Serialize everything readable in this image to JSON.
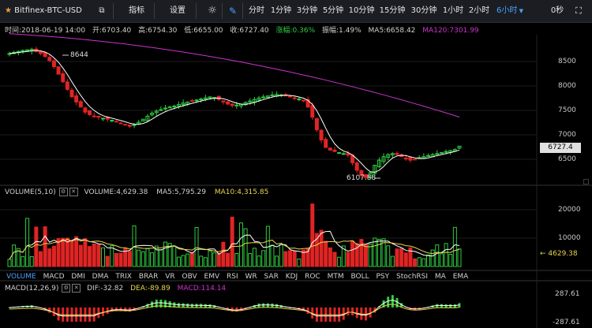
{
  "toolbar": {
    "symbol": "Bitfinex-BTC-USD",
    "indicators_label": "指标",
    "settings_label": "设置",
    "timeframes": [
      "分时",
      "1分钟",
      "3分钟",
      "5分钟",
      "10分钟",
      "15分钟",
      "30分钟",
      "1小时",
      "2小时",
      "6小时"
    ],
    "active_timeframe": "6小时",
    "countdown": "0秒"
  },
  "info_bar": {
    "time": "时间:2018-06-19 14:00",
    "open": "开:6703.40",
    "high": "高:6754.30",
    "low": "低:6655.00",
    "close": "收:6727.40",
    "change": "涨幅:0.36%",
    "amplitude": "振幅:1.49%",
    "ma5": "MA5:6658.42",
    "ma120": "MA120:7301.99"
  },
  "price_axis": {
    "ticks": [
      "8500",
      "8000",
      "7500",
      "7000",
      "6500"
    ],
    "current_price": "6727.4",
    "high_marker": "8644",
    "low_marker": "6107.88"
  },
  "volume_panel": {
    "title": "VOLUME(5,10)",
    "volume": "VOLUME:4,629.38",
    "ma5": "MA5:5,795.29",
    "ma10": "MA10:4,315.85",
    "ticks": [
      "20000",
      "10000"
    ],
    "current": "4629.38"
  },
  "indicator_tabs": [
    "VOLUME",
    "MACD",
    "DMI",
    "DMA",
    "TRIX",
    "BRAR",
    "VR",
    "OBV",
    "EMV",
    "RSI",
    "WR",
    "SAR",
    "KDJ",
    "ROC",
    "MTM",
    "BOLL",
    "PSY",
    "StochRSI",
    "MA",
    "EMA"
  ],
  "macd_panel": {
    "title": "MACD(12,26,9)",
    "dif": "DIF:-32.82",
    "dea": "DEA:-89.89",
    "macd": "MACD:114.14",
    "top_tick": "287.61",
    "bottom_tick": "-287.61"
  },
  "colors": {
    "up": "#2ecc40",
    "down": "#e02424",
    "ma5": "#ffffff",
    "ma120": "#cc33cc",
    "ma10_vol": "#e8d44d",
    "active": "#4aa3ff"
  },
  "chart_data": {
    "type": "candlestick",
    "price_range": [
      6000,
      8900
    ],
    "closes": [
      8560,
      8580,
      8600,
      8620,
      8630,
      8644,
      8600,
      8560,
      8500,
      8420,
      8300,
      8150,
      8000,
      7850,
      7700,
      7600,
      7500,
      7400,
      7350,
      7320,
      7300,
      7280,
      7260,
      7240,
      7210,
      7180,
      7150,
      7120,
      7150,
      7200,
      7260,
      7320,
      7380,
      7420,
      7450,
      7480,
      7500,
      7520,
      7550,
      7580,
      7600,
      7620,
      7640,
      7660,
      7680,
      7700,
      7690,
      7650,
      7600,
      7560,
      7530,
      7540,
      7560,
      7590,
      7620,
      7650,
      7680,
      7700,
      7720,
      7740,
      7750,
      7740,
      7720,
      7700,
      7680,
      7660,
      7620,
      7500,
      7300,
      7050,
      6850,
      6700,
      6650,
      6620,
      6600,
      6580,
      6550,
      6400,
      6250,
      6150,
      6107,
      6200,
      6350,
      6450,
      6520,
      6560,
      6580,
      6560,
      6520,
      6480,
      6450,
      6470,
      6500,
      6520,
      6540,
      6560,
      6580,
      6600,
      6620,
      6640,
      6660,
      6727
    ],
    "ma120_range": [
      8950,
      7302
    ]
  }
}
